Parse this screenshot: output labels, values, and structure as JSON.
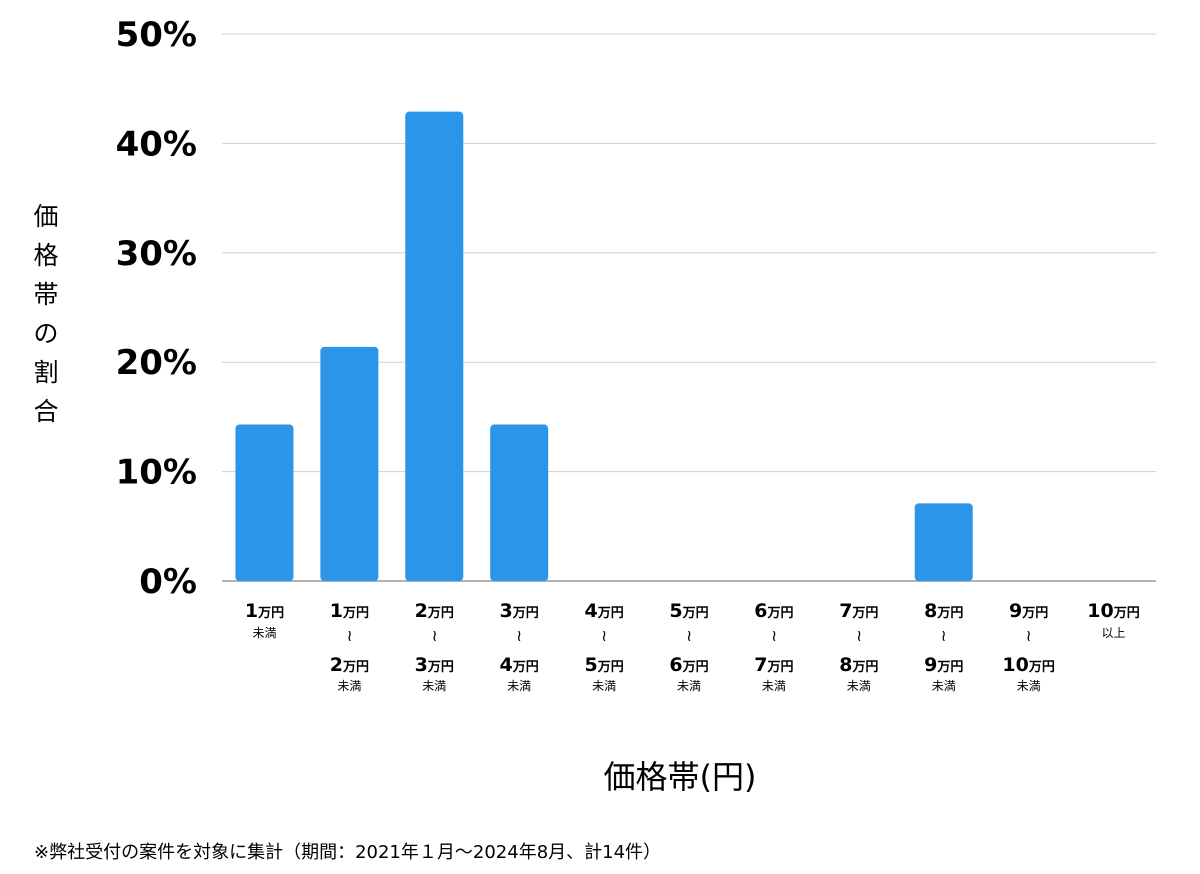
{
  "chart_data": {
    "type": "bar",
    "title": "",
    "xlabel": "価格帯(円)",
    "ylabel": "価格帯の割合",
    "ylim": [
      0,
      50
    ],
    "y_ticks": [
      0,
      10,
      20,
      30,
      40,
      50
    ],
    "y_tick_labels": [
      "0%",
      "10%",
      "20%",
      "30%",
      "40%",
      "50%"
    ],
    "grid": true,
    "legend": "none",
    "bar_color": "#2b95e9",
    "categories": [
      {
        "lines": [
          [
            "1",
            "万円"
          ],
          [
            "未満"
          ]
        ]
      },
      {
        "lines": [
          [
            "1",
            "万円"
          ],
          [
            "~"
          ],
          [
            "2",
            "万円"
          ],
          [
            "未満"
          ]
        ]
      },
      {
        "lines": [
          [
            "2",
            "万円"
          ],
          [
            "~"
          ],
          [
            "3",
            "万円"
          ],
          [
            "未満"
          ]
        ]
      },
      {
        "lines": [
          [
            "3",
            "万円"
          ],
          [
            "~"
          ],
          [
            "4",
            "万円"
          ],
          [
            "未満"
          ]
        ]
      },
      {
        "lines": [
          [
            "4",
            "万円"
          ],
          [
            "~"
          ],
          [
            "5",
            "万円"
          ],
          [
            "未満"
          ]
        ]
      },
      {
        "lines": [
          [
            "5",
            "万円"
          ],
          [
            "~"
          ],
          [
            "6",
            "万円"
          ],
          [
            "未満"
          ]
        ]
      },
      {
        "lines": [
          [
            "6",
            "万円"
          ],
          [
            "~"
          ],
          [
            "7",
            "万円"
          ],
          [
            "未満"
          ]
        ]
      },
      {
        "lines": [
          [
            "7",
            "万円"
          ],
          [
            "~"
          ],
          [
            "8",
            "万円"
          ],
          [
            "未満"
          ]
        ]
      },
      {
        "lines": [
          [
            "8",
            "万円"
          ],
          [
            "~"
          ],
          [
            "9",
            "万円"
          ],
          [
            "未満"
          ]
        ]
      },
      {
        "lines": [
          [
            "9",
            "万円"
          ],
          [
            "~"
          ],
          [
            "10",
            "万円"
          ],
          [
            "未満"
          ]
        ]
      },
      {
        "lines": [
          [
            "10",
            "万円"
          ],
          [
            "以上"
          ]
        ]
      }
    ],
    "values": [
      14.3,
      21.4,
      42.9,
      14.3,
      0,
      0,
      0,
      0,
      7.1,
      0,
      0
    ]
  },
  "footnote": "※弊社受付の案件を対象に集計（期間：2021年１月〜2024年8月、計14件）"
}
